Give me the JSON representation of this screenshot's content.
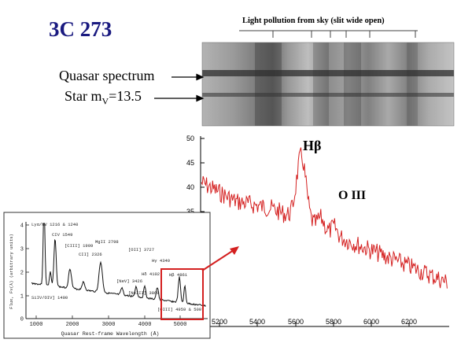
{
  "title": "3C 273",
  "slit_label": "Light pollution from sky (slit wide open)",
  "labels": {
    "quasar_spectrum": "Quasar spectrum",
    "star_prefix": "Star m",
    "star_sub": "V",
    "star_suffix": "=13.5"
  },
  "zoom_plot": {
    "y_ticks": [
      "50",
      "45",
      "40",
      "35"
    ],
    "x_ticks": [
      "5200",
      "5400",
      "5600",
      "5800",
      "6000",
      "6200"
    ],
    "line_annotations": [
      "Hβ",
      "O III"
    ],
    "line_color": "#d42020"
  },
  "inset_spectrum": {
    "x_ticks": [
      "1000",
      "2000",
      "3000",
      "4000",
      "5000"
    ],
    "y_ticks": [
      "4",
      "3",
      "2",
      "1",
      "0"
    ],
    "xlabel": "Quasar Rest-frame Wavelength (Å)",
    "ylabel": "Flux, Fν(λ) (arbitrary units)",
    "line_labels": [
      "Lyα/NV 1216 & 1240",
      "CIV 1549",
      "SiIV/OIV] 1400",
      "[CIII] 1909",
      "CII] 2326",
      "MgII 2798",
      "[NeV] 3426",
      "[OII] 3727",
      "[NeIII] 3869",
      "Hγ 4340",
      "Hδ 4102",
      "Hβ 4861",
      "[OIII] 4959 & 5007"
    ]
  },
  "colors": {
    "title": "#1a1a80",
    "highlight": "#d42020"
  }
}
